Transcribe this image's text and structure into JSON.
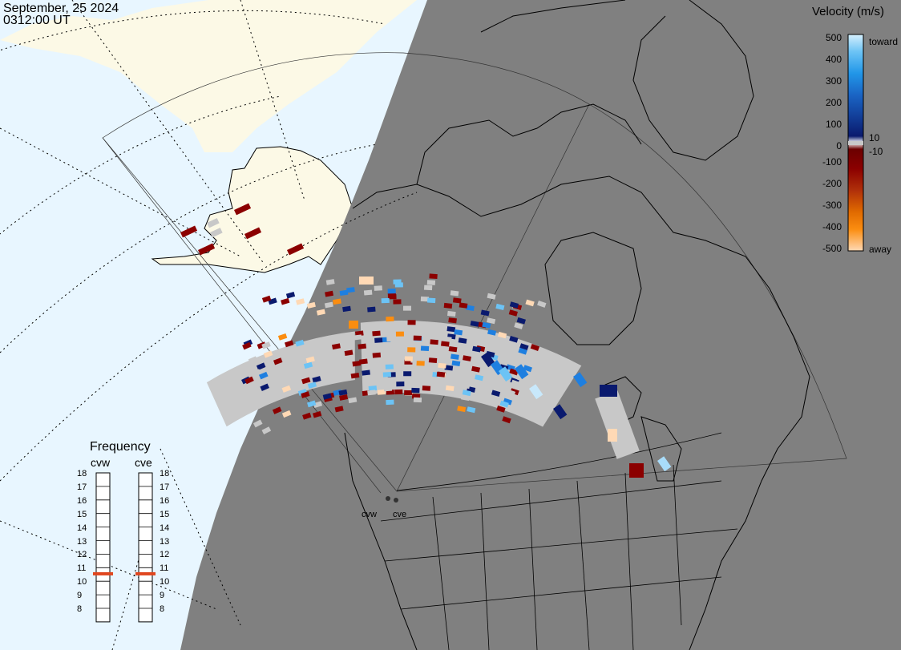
{
  "header": {
    "date": "September, 25 2024",
    "time": "0312:00 UT"
  },
  "colorbar": {
    "title": "Velocity (m/s)",
    "ticks_pos": [
      "500",
      "400",
      "300",
      "200",
      "100",
      "0"
    ],
    "ticks_neg": [
      "-100",
      "-200",
      "-300",
      "-400",
      "-500"
    ],
    "label_10": "10",
    "label_m10": "-10",
    "toward_label": "toward",
    "away_label": "away"
  },
  "frequency": {
    "title": "Frequency",
    "radars": [
      "cvw",
      "cve"
    ],
    "ticks": [
      "18",
      "17",
      "16",
      "15",
      "14",
      "13",
      "12",
      "11",
      "10",
      "9",
      "8"
    ],
    "selected_mhz": {
      "cvw": 11,
      "cve": 11
    }
  },
  "map_labels": {
    "cvw": "cvw",
    "cve": "cve"
  },
  "colors": {
    "ocean": "#e8f6ff",
    "land": "#fcf9e6",
    "night": "#808080",
    "groundscatter": "#c8c8c8",
    "toward_scale": [
      "#08306b",
      "#1a4fa3",
      "#2c7be5",
      "#4aa6f0",
      "#a8dcfa"
    ],
    "away_scale": [
      "#8b0000",
      "#c4420a",
      "#e66f00",
      "#fb8d10",
      "#ffd7b0"
    ]
  }
}
